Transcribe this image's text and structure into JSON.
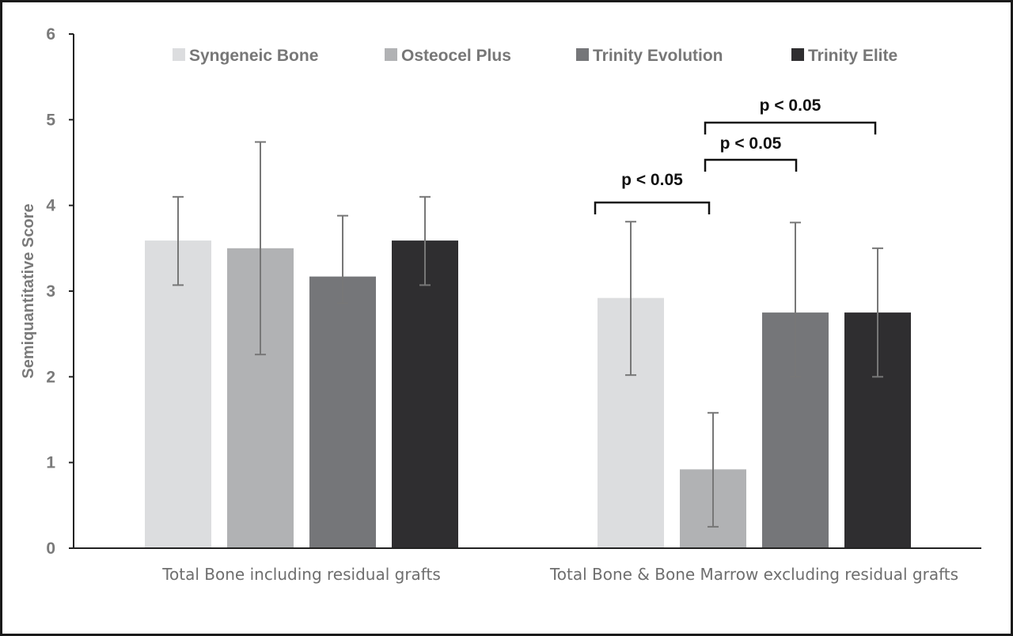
{
  "chart_data": {
    "type": "bar",
    "title": "",
    "xlabel": "",
    "ylabel": "Semiquantitative Score",
    "ylim": [
      0,
      6
    ],
    "yticks": [
      "0",
      "1",
      "2",
      "3",
      "4",
      "5",
      "6"
    ],
    "categories": [
      "Total Bone including residual grafts",
      "Total Bone & Bone Marrow excluding residual grafts"
    ],
    "legend_position": "top",
    "grid": false,
    "series": [
      {
        "name": "Syngeneic Bone",
        "color": "#dcdddf",
        "values": [
          3.59,
          2.92
        ],
        "err_low": [
          3.07,
          2.02
        ],
        "err_high": [
          4.1,
          3.81
        ]
      },
      {
        "name": "Osteocel Plus",
        "color": "#b1b2b4",
        "values": [
          3.5,
          0.92
        ],
        "err_low": [
          2.26,
          0.25
        ],
        "err_high": [
          4.74,
          1.58
        ]
      },
      {
        "name": "Trinity Evolution",
        "color": "#757679",
        "values": [
          3.17,
          2.75
        ],
        "err_low": [
          2.86,
          2.0
        ],
        "err_high": [
          3.88,
          3.8
        ]
      },
      {
        "name": "Trinity Elite",
        "color": "#2f2e30",
        "values": [
          3.59,
          2.75
        ],
        "err_low": [
          3.07,
          2.0
        ],
        "err_high": [
          4.1,
          3.5
        ]
      }
    ],
    "annotations": [
      {
        "text": "p < 0.05",
        "category": 1,
        "from_series": 0,
        "to_series": 1
      },
      {
        "text": "p < 0.05",
        "category": 1,
        "from_series": 1,
        "to_series": 2
      },
      {
        "text": "p < 0.05",
        "category": 1,
        "from_series": 1,
        "to_series": 3
      }
    ]
  }
}
